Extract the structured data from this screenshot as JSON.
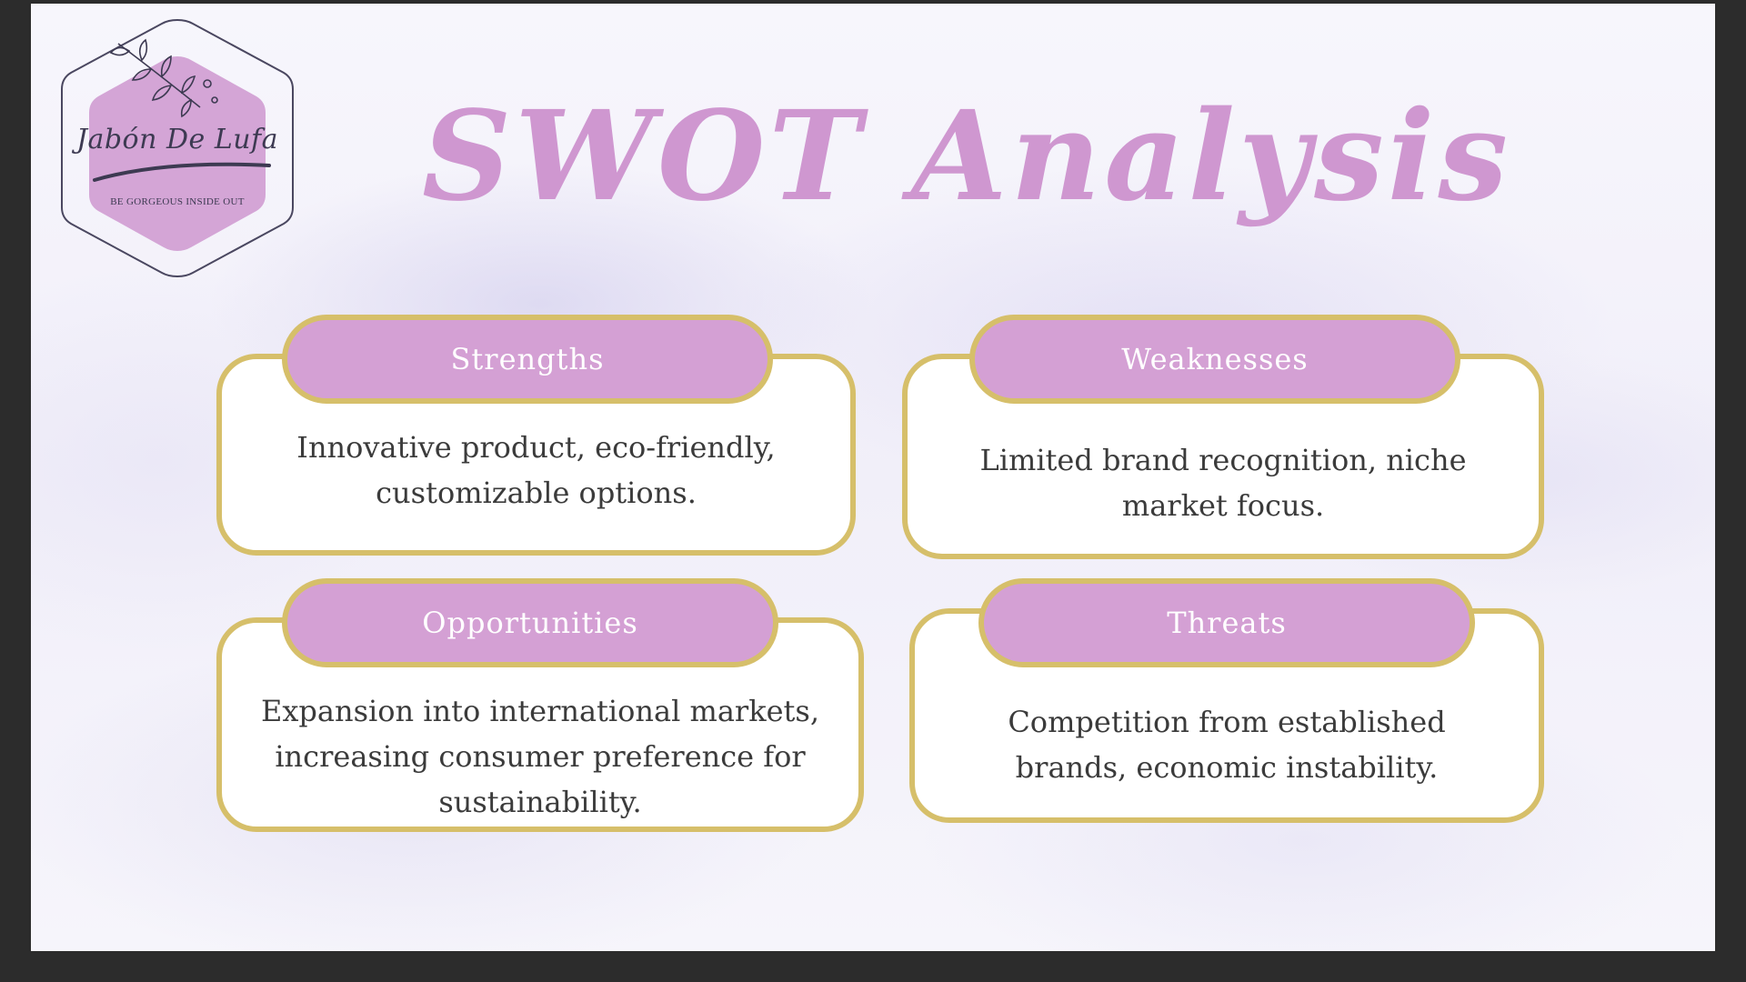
{
  "logo": {
    "name": "Jabón De Lufa",
    "tagline": "BE GORGEOUS INSIDE OUT"
  },
  "title": "SWOT Analysis",
  "swot": {
    "strengths": {
      "heading": "Strengths",
      "lines": [
        "Innovative product, eco-friendly,",
        "customizable options."
      ]
    },
    "weaknesses": {
      "heading": "Weaknesses",
      "lines": [
        "Limited brand recognition, niche",
        "market focus."
      ]
    },
    "opportunities": {
      "heading": "Opportunities",
      "lines": [
        "Expansion into international markets,",
        "increasing consumer preference for",
        "sustainability."
      ]
    },
    "threats": {
      "heading": "Threats",
      "lines": [
        "Competition from established",
        "brands, economic instability."
      ]
    }
  },
  "colors": {
    "accent_purple": "#d4a0d4",
    "gold_border": "#d6bf6a",
    "title_purple": "#cf97d0",
    "text_dark": "#3b3b3b"
  }
}
